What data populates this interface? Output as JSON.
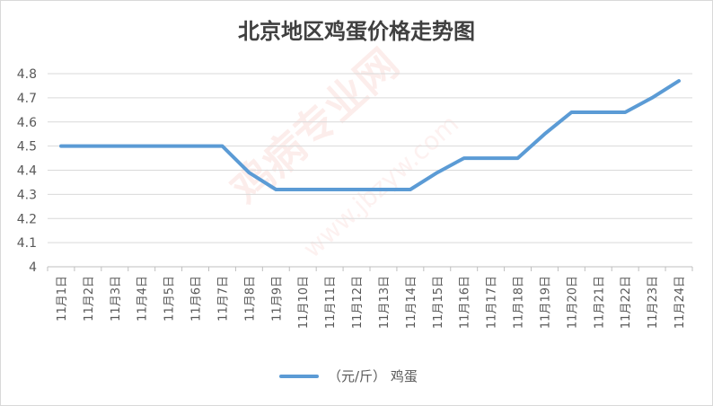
{
  "chart_data": {
    "type": "line",
    "title": "北京地区鸡蛋价格走势图",
    "x": [
      "11月1日",
      "11月2日",
      "11月3日",
      "11月4日",
      "11月5日",
      "11月6日",
      "11月7日",
      "11月8日",
      "11月9日",
      "11月10日",
      "11月11日",
      "11月12日",
      "11月13日",
      "11月14日",
      "11月15日",
      "11月16日",
      "11月17日",
      "11月18日",
      "11月19日",
      "11月20日",
      "11月21日",
      "11月22日",
      "11月23日",
      "11月24日"
    ],
    "series": [
      {
        "name": "（元/斤） 鸡蛋",
        "values": [
          4.5,
          4.5,
          4.5,
          4.5,
          4.5,
          4.5,
          4.5,
          4.39,
          4.32,
          4.32,
          4.32,
          4.32,
          4.32,
          4.32,
          4.39,
          4.45,
          4.45,
          4.45,
          4.55,
          4.64,
          4.64,
          4.64,
          4.7,
          4.77
        ],
        "color": "#5b9bd5"
      }
    ],
    "yticks": [
      "4",
      "4.1",
      "4.2",
      "4.3",
      "4.4",
      "4.5",
      "4.6",
      "4.7",
      "4.8"
    ],
    "ylim": [
      4,
      4.8
    ],
    "grid": true,
    "legend_position": "bottom"
  },
  "watermark": {
    "line1": "鸡病专业网",
    "line2": "www.jbzyw.com"
  }
}
